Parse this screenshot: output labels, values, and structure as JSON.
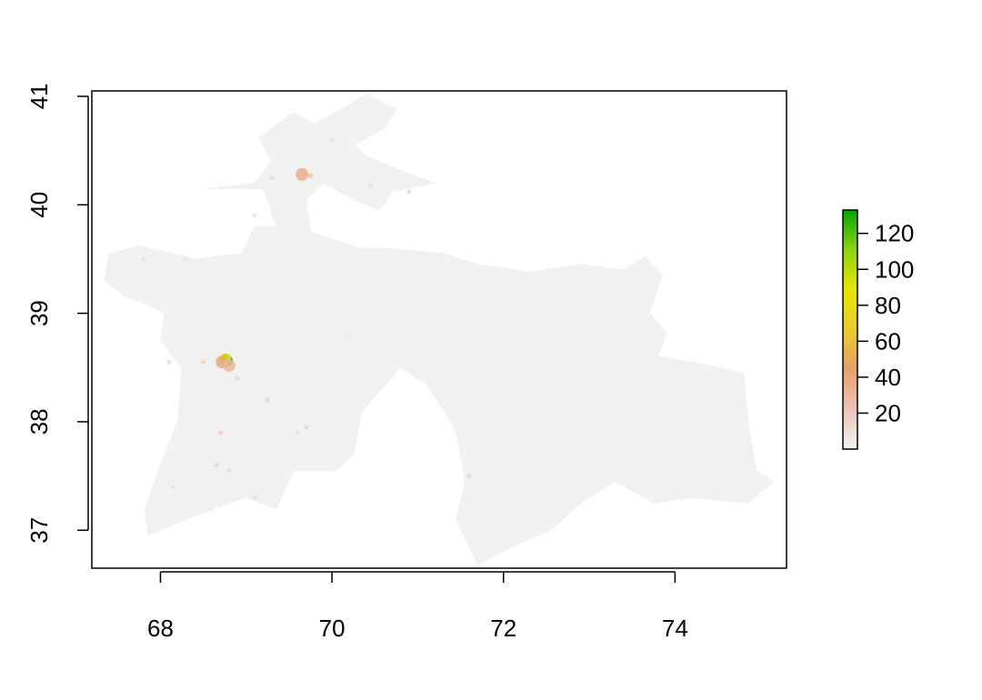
{
  "chart_data": {
    "type": "heatmap",
    "title": "",
    "xlabel": "",
    "ylabel": "",
    "xlim": [
      67.2,
      75.3
    ],
    "ylim": [
      36.65,
      41.05
    ],
    "x_ticks": [
      68,
      70,
      72,
      74
    ],
    "x_tick_labels": [
      "68",
      "70",
      "72",
      "74"
    ],
    "y_ticks": [
      37,
      38,
      39,
      40,
      41
    ],
    "y_tick_labels": [
      "37",
      "38",
      "39",
      "40",
      "41"
    ],
    "grid": false,
    "legend": {
      "placement": "right",
      "type": "colorbar",
      "range": [
        0,
        133
      ],
      "ticks": [
        20,
        40,
        60,
        80,
        100,
        120
      ],
      "tick_labels": [
        "20",
        "40",
        "60",
        "80",
        "100",
        "120"
      ],
      "colors": [
        "#F2F2F2",
        "#EEC3B7",
        "#E6A06A",
        "#EBCB2E",
        "#E6E600",
        "#8ED313",
        "#00A600"
      ]
    },
    "background_value_color": "#F1F1F1",
    "region_outline": [
      [
        67.4,
        39.55
      ],
      [
        67.75,
        39.62
      ],
      [
        68.4,
        39.5
      ],
      [
        68.95,
        39.55
      ],
      [
        69.1,
        39.8
      ],
      [
        69.35,
        39.8
      ],
      [
        69.2,
        40.15
      ],
      [
        68.55,
        40.15
      ],
      [
        69.1,
        40.2
      ],
      [
        69.3,
        40.4
      ],
      [
        69.15,
        40.62
      ],
      [
        69.55,
        40.85
      ],
      [
        69.8,
        40.75
      ],
      [
        70.15,
        40.9
      ],
      [
        70.4,
        41.02
      ],
      [
        70.75,
        40.88
      ],
      [
        70.6,
        40.7
      ],
      [
        70.25,
        40.55
      ],
      [
        70.4,
        40.45
      ],
      [
        70.85,
        40.3
      ],
      [
        71.2,
        40.2
      ],
      [
        70.7,
        40.12
      ],
      [
        70.55,
        39.95
      ],
      [
        70.25,
        40.05
      ],
      [
        69.9,
        40.2
      ],
      [
        69.7,
        40.05
      ],
      [
        69.75,
        39.75
      ],
      [
        70.3,
        39.6
      ],
      [
        70.6,
        39.6
      ],
      [
        71.3,
        39.55
      ],
      [
        71.7,
        39.45
      ],
      [
        72.3,
        39.38
      ],
      [
        72.9,
        39.45
      ],
      [
        73.4,
        39.4
      ],
      [
        73.65,
        39.52
      ],
      [
        73.85,
        39.35
      ],
      [
        73.7,
        39.0
      ],
      [
        73.9,
        38.82
      ],
      [
        73.8,
        38.6
      ],
      [
        74.2,
        38.55
      ],
      [
        74.8,
        38.45
      ],
      [
        74.85,
        38.0
      ],
      [
        74.95,
        37.55
      ],
      [
        75.15,
        37.45
      ],
      [
        74.85,
        37.25
      ],
      [
        74.2,
        37.3
      ],
      [
        73.75,
        37.25
      ],
      [
        73.3,
        37.45
      ],
      [
        72.9,
        37.25
      ],
      [
        72.55,
        37.0
      ],
      [
        72.1,
        36.85
      ],
      [
        71.7,
        36.68
      ],
      [
        71.45,
        37.1
      ],
      [
        71.55,
        37.45
      ],
      [
        71.45,
        37.9
      ],
      [
        71.35,
        38.05
      ],
      [
        71.1,
        38.35
      ],
      [
        70.8,
        38.5
      ],
      [
        70.35,
        38.1
      ],
      [
        70.25,
        37.7
      ],
      [
        70.05,
        37.55
      ],
      [
        69.55,
        37.55
      ],
      [
        69.35,
        37.2
      ],
      [
        69.0,
        37.3
      ],
      [
        68.8,
        37.25
      ],
      [
        68.3,
        37.1
      ],
      [
        67.85,
        36.95
      ],
      [
        67.82,
        37.2
      ],
      [
        68.0,
        37.6
      ],
      [
        68.2,
        38.0
      ],
      [
        68.25,
        38.5
      ],
      [
        68.0,
        38.75
      ],
      [
        68.05,
        39.0
      ],
      [
        67.8,
        39.1
      ],
      [
        67.6,
        39.15
      ],
      [
        67.35,
        39.3
      ]
    ],
    "hotspots": [
      {
        "lon": 68.78,
        "lat": 38.56,
        "value": 130
      },
      {
        "lon": 68.76,
        "lat": 38.58,
        "value": 95
      },
      {
        "lon": 68.72,
        "lat": 38.55,
        "value": 40
      },
      {
        "lon": 68.8,
        "lat": 38.52,
        "value": 30
      },
      {
        "lon": 69.65,
        "lat": 40.28,
        "value": 35
      },
      {
        "lon": 69.75,
        "lat": 40.27,
        "value": 25
      },
      {
        "lon": 69.3,
        "lat": 40.25,
        "value": 12
      },
      {
        "lon": 70.9,
        "lat": 40.12,
        "value": 15
      },
      {
        "lon": 70.45,
        "lat": 40.18,
        "value": 12
      },
      {
        "lon": 70.0,
        "lat": 40.6,
        "value": 10
      },
      {
        "lon": 68.5,
        "lat": 38.55,
        "value": 15
      },
      {
        "lon": 68.1,
        "lat": 38.55,
        "value": 12
      },
      {
        "lon": 68.9,
        "lat": 38.4,
        "value": 15
      },
      {
        "lon": 69.25,
        "lat": 38.2,
        "value": 15
      },
      {
        "lon": 68.7,
        "lat": 37.9,
        "value": 18
      },
      {
        "lon": 68.65,
        "lat": 37.6,
        "value": 15
      },
      {
        "lon": 68.8,
        "lat": 37.55,
        "value": 12
      },
      {
        "lon": 69.7,
        "lat": 37.95,
        "value": 15
      },
      {
        "lon": 69.6,
        "lat": 37.9,
        "value": 12
      },
      {
        "lon": 68.15,
        "lat": 37.4,
        "value": 10
      },
      {
        "lon": 69.1,
        "lat": 37.3,
        "value": 10
      },
      {
        "lon": 71.6,
        "lat": 37.5,
        "value": 15
      },
      {
        "lon": 67.8,
        "lat": 39.5,
        "value": 10
      },
      {
        "lon": 68.3,
        "lat": 39.5,
        "value": 8
      },
      {
        "lon": 69.1,
        "lat": 39.9,
        "value": 8
      },
      {
        "lon": 70.2,
        "lat": 38.8,
        "value": 6
      }
    ]
  }
}
